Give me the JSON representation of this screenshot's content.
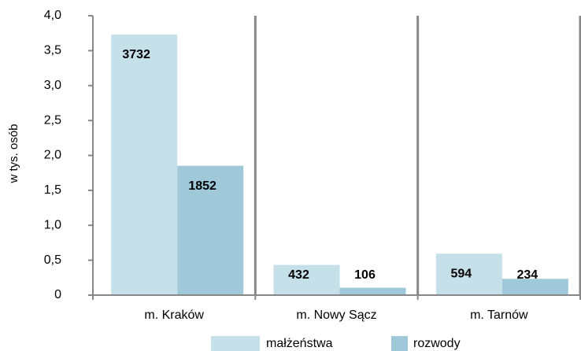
{
  "chart_data": {
    "type": "bar",
    "y_label": "w tys. osób",
    "categories": [
      "m. Kraków",
      "m. Nowy Sącz",
      "m. Tarnów"
    ],
    "series": [
      {
        "name": "małżeństwa",
        "color": "#c6e0ea",
        "values": [
          3.732,
          0.432,
          0.594
        ],
        "value_labels": [
          "3732",
          "432",
          "594"
        ]
      },
      {
        "name": "rozwody",
        "color": "#9fc9d9",
        "values": [
          1.852,
          0.106,
          0.234
        ],
        "value_labels": [
          "1852",
          "106",
          "234"
        ]
      }
    ],
    "ylim": [
      0,
      4
    ],
    "yticks": [
      0,
      {
        "value": 0.5,
        "label": "0,5"
      },
      {
        "value": 1,
        "label": "1,0"
      },
      {
        "value": 1.5,
        "label": "1,5"
      },
      {
        "value": 2,
        "label": "2,0"
      },
      {
        "value": 2.5,
        "label": "2,5"
      },
      {
        "value": 3,
        "label": "3,0"
      },
      {
        "value": 3.5,
        "label": "3,5"
      },
      {
        "value": 4,
        "label": "4,0"
      }
    ],
    "legend": "bottom"
  }
}
